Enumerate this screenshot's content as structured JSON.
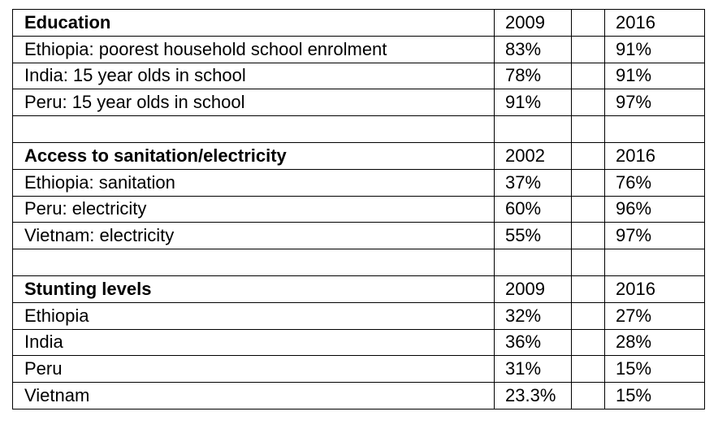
{
  "sections": [
    {
      "title": "Education",
      "year_a": "2009",
      "year_b": "2016",
      "rows": [
        {
          "label": "Ethiopia: poorest household school enrolment",
          "a": "83%",
          "b": "91%"
        },
        {
          "label": "India: 15 year olds in school",
          "a": "78%",
          "b": "91%"
        },
        {
          "label": "Peru: 15 year olds in school",
          "a": "91%",
          "b": "97%"
        }
      ]
    },
    {
      "title": "Access to sanitation/electricity",
      "year_a": "2002",
      "year_b": "2016",
      "rows": [
        {
          "label": "Ethiopia: sanitation",
          "a": "37%",
          "b": "76%"
        },
        {
          "label": "Peru: electricity",
          "a": "60%",
          "b": "96%"
        },
        {
          "label": "Vietnam: electricity",
          "a": "55%",
          "b": "97%"
        }
      ]
    },
    {
      "title": "Stunting levels",
      "year_a": "2009",
      "year_b": "2016",
      "rows": [
        {
          "label": "Ethiopia",
          "a": "32%",
          "b": "27%"
        },
        {
          "label": "India",
          "a": "36%",
          "b": "28%"
        },
        {
          "label": "Peru",
          "a": "31%",
          "b": "15%"
        },
        {
          "label": "Vietnam",
          "a": "23.3%",
          "b": "15%"
        }
      ]
    }
  ]
}
